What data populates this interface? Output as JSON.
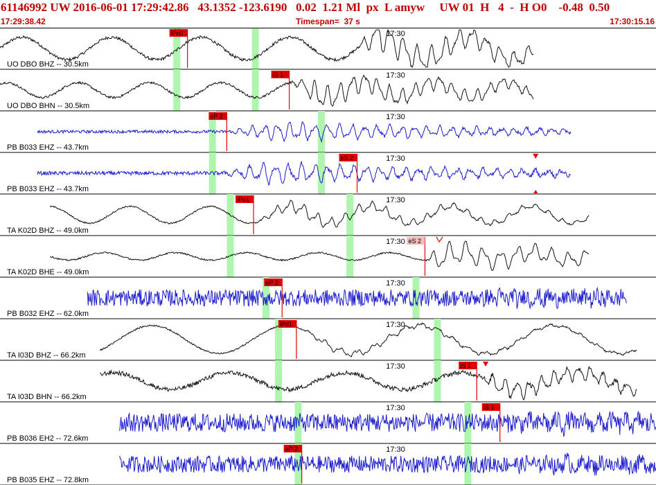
{
  "header": {
    "title": "61146992 UW 2016-06-01 17:29:42.86   43.1352 -123.6190   0.02  1.21 Ml  px  L amyw     UW 01  H   4  -  H O0    -0.48  0.50",
    "start_time": "17:29:38.42",
    "timespan": "Timespan=  37 s",
    "end_time": "17:30:15.16"
  },
  "colors": {
    "trace_black": "#111111",
    "trace_blue": "#1a1acc",
    "pick_red": "#e00000",
    "pick_pink": "#f4b8b8",
    "window_green": "#aef5ae",
    "text": "#000000",
    "header_red": "#c00000"
  },
  "chart_data": {
    "type": "line",
    "title": "61146992 UW 2016-06-01 17:29:42.86   43.1352 -123.6190   0.02  1.21 Ml  px  L amyw     UW 01  H   4  -  H O0    -0.48  0.50",
    "x_unit": "s",
    "xlim": [
      0,
      36.74
    ],
    "x_start_label": "17:29:38.42",
    "x_end_label": "17:30:15.16",
    "minute_mark": {
      "label": "17:30",
      "t": 21.58
    },
    "channels": [
      {
        "label": "UO DBO BHZ -- 30.5km",
        "color": "black",
        "data_start": 0.0,
        "data_end": 29.9,
        "noise": 0.08,
        "lowfreq": 0.6,
        "low_period": 5.0,
        "event_amp": 0.95,
        "event_t": 20.0,
        "ramp": 1.0,
        "windows": [
          9.9,
          14.3
        ],
        "picks": [
          {
            "label": "iPc0",
            "t": 10.5,
            "style": "red"
          }
        ],
        "markers": []
      },
      {
        "label": "UO DBO BHN -- 30.5km",
        "color": "black",
        "data_start": 0.0,
        "data_end": 29.9,
        "noise": 0.06,
        "lowfreq": 0.4,
        "low_period": 4.0,
        "event_amp": 0.8,
        "event_t": 16.2,
        "ramp": 1.5,
        "windows": [
          9.9,
          14.3
        ],
        "picks": [
          {
            "label": "iS 1",
            "t": 16.2,
            "style": "red"
          }
        ],
        "markers": []
      },
      {
        "label": "PB B033 EHZ -- 43.7km",
        "color": "blue",
        "data_start": 2.1,
        "data_end": 32.0,
        "noise": 0.08,
        "lowfreq": 0.0,
        "low_period": 3.0,
        "event_amp": 0.7,
        "event_t": 12.7,
        "ramp": 3.0,
        "windows": [
          11.9,
          18.0
        ],
        "picks": [
          {
            "label": "eP 2",
            "t": 12.7,
            "style": "red"
          }
        ],
        "markers": []
      },
      {
        "label": "PB B033 EHZ -- 43.7km",
        "color": "blue",
        "data_start": 2.1,
        "data_end": 32.0,
        "noise": 0.1,
        "lowfreq": 0.0,
        "low_period": 3.0,
        "event_amp": 0.75,
        "event_t": 12.4,
        "ramp": 2.5,
        "windows": [
          11.9,
          18.0
        ],
        "picks": [
          {
            "label": "eS 2",
            "t": 20.0,
            "style": "red"
          }
        ],
        "markers": [
          {
            "t": 30.0,
            "type": "triangle-down"
          },
          {
            "t": 30.0,
            "type": "dot-bottom"
          }
        ]
      },
      {
        "label": "TA K02D BHZ -- 49.0km",
        "color": "black",
        "data_start": 2.8,
        "data_end": 33.0,
        "noise": 0.04,
        "lowfreq": 0.45,
        "low_period": 4.5,
        "event_amp": 0.45,
        "event_t": 14.2,
        "ramp": 2.0,
        "windows": [
          12.9,
          19.6
        ],
        "picks": [
          {
            "label": "iPd1",
            "t": 14.2,
            "style": "red"
          }
        ],
        "markers": []
      },
      {
        "label": "TA K02D BHE -- 49.0km",
        "color": "black",
        "data_start": 2.8,
        "data_end": 33.0,
        "noise": 0.04,
        "lowfreq": 0.2,
        "low_period": 4.0,
        "event_amp": 0.8,
        "event_t": 23.8,
        "ramp": 0.8,
        "windows": [
          12.9,
          19.6
        ],
        "picks": [
          {
            "label": "eS 2",
            "t": 23.8,
            "style": "pink"
          }
        ],
        "markers": [
          {
            "t": 24.6,
            "type": "check"
          }
        ]
      },
      {
        "label": "PB B032 EHZ -- 62.0km",
        "color": "blue",
        "data_start": 4.9,
        "data_end": 35.1,
        "noise": 0.45,
        "lowfreq": 0.0,
        "low_period": 3.0,
        "event_amp": 0.3,
        "event_t": 26.0,
        "ramp": 3.0,
        "windows": [
          14.9,
          23.3
        ],
        "picks": [
          {
            "label": "eP 2",
            "t": 15.8,
            "style": "red"
          }
        ],
        "markers": []
      },
      {
        "label": "TA I03D BHZ -- 66.2km",
        "color": "black",
        "data_start": 5.6,
        "data_end": 35.7,
        "noise": 0.04,
        "lowfreq": 0.75,
        "low_period": 7.5,
        "event_amp": 0.25,
        "event_t": 16.6,
        "ramp": 2.0,
        "windows": [
          15.6,
          24.5
        ],
        "picks": [
          {
            "label": "iPd1",
            "t": 16.6,
            "style": "red"
          }
        ],
        "markers": []
      },
      {
        "label": "TA I03D BHN -- 66.2km",
        "color": "black",
        "data_start": 5.6,
        "data_end": 35.7,
        "noise": 0.12,
        "lowfreq": 0.45,
        "low_period": 6.5,
        "event_amp": 0.6,
        "event_t": 26.7,
        "ramp": 1.2,
        "windows": [
          15.6,
          24.5
        ],
        "picks": [
          {
            "label": "iS 1",
            "t": 26.7,
            "style": "red"
          }
        ],
        "markers": [
          {
            "t": 27.2,
            "type": "triangle-down"
          }
        ]
      },
      {
        "label": "PB B036 EH2 -- 72.6km",
        "color": "blue",
        "data_start": 6.7,
        "data_end": 36.74,
        "noise": 0.5,
        "lowfreq": 0.0,
        "low_period": 3.0,
        "event_amp": 0.35,
        "event_t": 28.0,
        "ramp": 3.0,
        "windows": [
          16.7,
          26.2
        ],
        "picks": [
          {
            "label": "iS 1",
            "t": 28.0,
            "style": "red"
          }
        ],
        "markers": []
      },
      {
        "label": "PB B035 EHZ -- 72.8km",
        "color": "blue",
        "data_start": 6.7,
        "data_end": 36.74,
        "noise": 0.45,
        "lowfreq": 0.0,
        "low_period": 3.0,
        "event_amp": 0.3,
        "event_t": 28.0,
        "ramp": 3.0,
        "windows": [
          16.7,
          26.2
        ],
        "picks": [
          {
            "label": "eP 2",
            "t": 16.9,
            "style": "red"
          }
        ],
        "markers": []
      }
    ]
  }
}
